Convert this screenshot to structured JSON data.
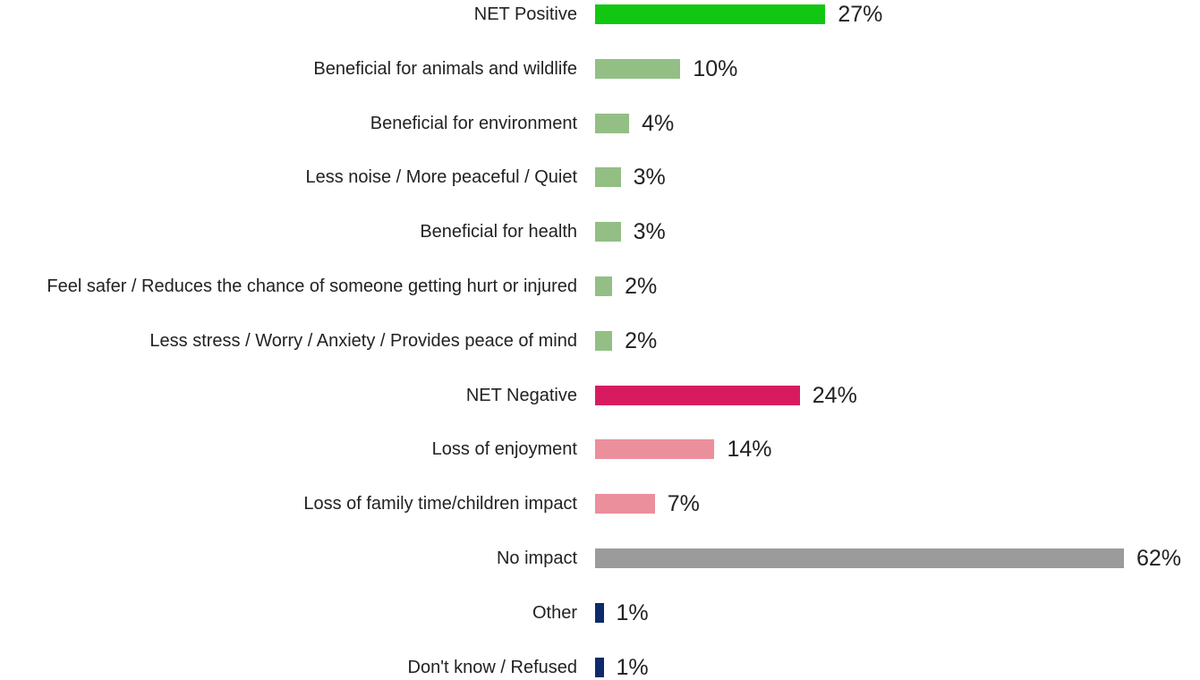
{
  "chart_data": {
    "type": "bar",
    "orientation": "horizontal",
    "categories": [
      "NET Positive",
      "Beneficial for animals and wildlife",
      "Beneficial for environment",
      "Less noise / More peaceful / Quiet",
      "Beneficial for health",
      "Feel safer / Reduces the chance of someone getting hurt or injured",
      "Less stress / Worry / Anxiety / Provides peace of mind",
      "NET Negative",
      "Loss of enjoyment",
      "Loss of family time/children impact",
      "No impact",
      "Other",
      "Don't know / Refused"
    ],
    "values": [
      27,
      10,
      4,
      3,
      3,
      2,
      2,
      24,
      14,
      7,
      62,
      1,
      1
    ],
    "value_labels": [
      "27%",
      "10%",
      "4%",
      "3%",
      "3%",
      "2%",
      "2%",
      "24%",
      "14%",
      "7%",
      "62%",
      "1%",
      "1%"
    ],
    "colors": [
      "#12c712",
      "#93bf85",
      "#93bf85",
      "#93bf85",
      "#93bf85",
      "#93bf85",
      "#93bf85",
      "#d81b60",
      "#ec8f9c",
      "#ec8f9c",
      "#9b9b9b",
      "#0d2a6b",
      "#0d2a6b"
    ]
  }
}
